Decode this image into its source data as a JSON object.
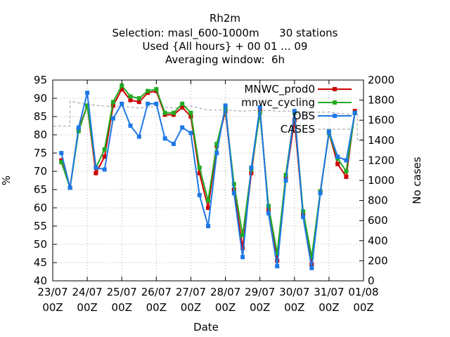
{
  "chart_data": {
    "type": "line",
    "title_lines": [
      "Rh2m",
      "Selection: masl_600-1000m      30 stations",
      "Used {All hours} + 00 01 ... 09",
      "Averaging window:  6h"
    ],
    "xlabel": "Date",
    "ylabel": "%",
    "y2label": "No cases",
    "ylim": [
      40,
      95
    ],
    "y2lim": [
      0,
      2000
    ],
    "xlim": [
      0,
      9
    ],
    "yticks": [
      "40",
      "45",
      "50",
      "55",
      "60",
      "65",
      "70",
      "75",
      "80",
      "85",
      "90",
      "95"
    ],
    "y2ticks": [
      "0",
      "200",
      "400",
      "600",
      "800",
      "1000",
      "1200",
      "1400",
      "1600",
      "1800",
      "2000"
    ],
    "xticks": [
      {
        "line1": "23/07",
        "line2": "00Z"
      },
      {
        "line1": "24/07",
        "line2": "00Z"
      },
      {
        "line1": "25/07",
        "line2": "00Z"
      },
      {
        "line1": "26/07",
        "line2": "00Z"
      },
      {
        "line1": "27/07",
        "line2": "00Z"
      },
      {
        "line1": "28/07",
        "line2": "00Z"
      },
      {
        "line1": "29/07",
        "line2": "00Z"
      },
      {
        "line1": "30/07",
        "line2": "00Z"
      },
      {
        "line1": "31/07",
        "line2": "00Z"
      },
      {
        "line1": "01/08",
        "line2": "00Z"
      }
    ],
    "grid": true,
    "legend_position": "top-right",
    "x": [
      0.25,
      0.5,
      0.75,
      1,
      1.25,
      1.5,
      1.75,
      2,
      2.25,
      2.5,
      2.75,
      3,
      3.25,
      3.5,
      3.75,
      4,
      4.25,
      4.5,
      4.75,
      5,
      5.25,
      5.5,
      5.75,
      6,
      6.25,
      6.5,
      6.75,
      7,
      7.25,
      7.5,
      7.75,
      8,
      8.25,
      8.5,
      8.75,
      9
    ],
    "series": [
      {
        "name": "MNWC_prod0",
        "color": "#cc0000",
        "axis": "left",
        "marker": "square",
        "values": [
          73,
          65.5,
          81.5,
          88,
          69.5,
          74,
          88,
          92.5,
          89.5,
          89,
          91.5,
          92,
          85.5,
          85.5,
          87.5,
          85,
          69.5,
          60,
          77,
          86.5,
          65,
          49,
          69.5,
          87,
          59.5,
          45.5,
          68,
          84,
          58,
          44.5,
          64.5,
          80.5,
          72,
          68.5,
          86.5,
          null
        ]
      },
      {
        "name": "mnwc_cycling",
        "color": "#22aa22",
        "axis": "left",
        "marker": "square",
        "values": [
          72.5,
          65.5,
          81,
          88,
          71,
          76,
          89,
          93.5,
          90.5,
          90,
          92,
          92.5,
          86,
          86,
          88.5,
          86,
          71,
          62,
          77.5,
          87,
          66.5,
          52.5,
          70.5,
          86,
          60.5,
          47.5,
          69,
          86,
          59,
          46.5,
          64.5,
          80.5,
          73.5,
          70,
          86,
          null
        ]
      },
      {
        "name": "OBS",
        "color": "#1e78e6",
        "axis": "left",
        "marker": "square",
        "values": [
          75,
          65.5,
          82,
          91.5,
          71,
          70.5,
          84.5,
          88.5,
          82.5,
          79.5,
          88.5,
          88.5,
          79,
          77.5,
          82,
          80.5,
          63.5,
          55,
          75,
          88,
          64,
          46.5,
          71,
          87.5,
          58.5,
          44,
          67.5,
          86.5,
          57.5,
          43.5,
          64,
          81,
          74,
          73,
          86,
          null
        ]
      },
      {
        "name": "CASES",
        "color": "#999999",
        "axis": "right",
        "dashed": true,
        "x": [
          0.02,
          0.25,
          0.5,
          0.5,
          0.9,
          1.5,
          2,
          2.5,
          3,
          3.5,
          4,
          4.5,
          5,
          5.5,
          6,
          6.5,
          7,
          7.5,
          8,
          8.5,
          8.82,
          8.82,
          9
        ],
        "values": [
          1540,
          1540,
          1540,
          1790,
          1760,
          1740,
          1740,
          1720,
          1740,
          1720,
          1740,
          1700,
          1700,
          1690,
          1700,
          1690,
          1690,
          1680,
          1680,
          1660,
          1660,
          1410,
          1410
        ]
      }
    ]
  }
}
